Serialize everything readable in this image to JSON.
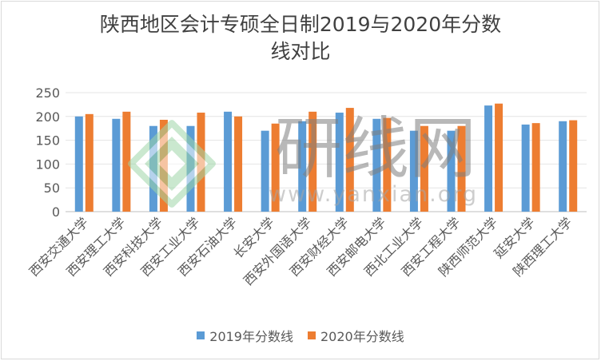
{
  "chart_data": {
    "type": "bar",
    "title_line1": "陕西地区会计专硕全日制2019与2020年分数",
    "title_line2": "线对比",
    "categories": [
      "西安交通大学",
      "西安理工大学",
      "西安科技大学",
      "西安工业大学",
      "西安石油大学",
      "长安大学",
      "西安外国语大学",
      "西安财经大学",
      "西安邮电大学",
      "西北工业大学",
      "西安工程大学",
      "陕西师范大学",
      "延安大学",
      "陕西理工大学"
    ],
    "series": [
      {
        "name": "2019年分数线",
        "color": "#5b9bd5",
        "values": [
          200,
          195,
          180,
          180,
          210,
          170,
          190,
          208,
          195,
          170,
          170,
          223,
          183,
          190
        ]
      },
      {
        "name": "2020年分数线",
        "color": "#ed7d31",
        "values": [
          205,
          210,
          193,
          208,
          200,
          185,
          210,
          218,
          197,
          180,
          180,
          227,
          186,
          192
        ]
      }
    ],
    "ylim": [
      0,
      250
    ],
    "yticks": [
      0,
      50,
      100,
      150,
      200,
      250
    ],
    "grid": true,
    "legend": "bottom"
  },
  "watermark": {
    "text_cn": "研线网",
    "text_url": "www.yanxian.org"
  }
}
